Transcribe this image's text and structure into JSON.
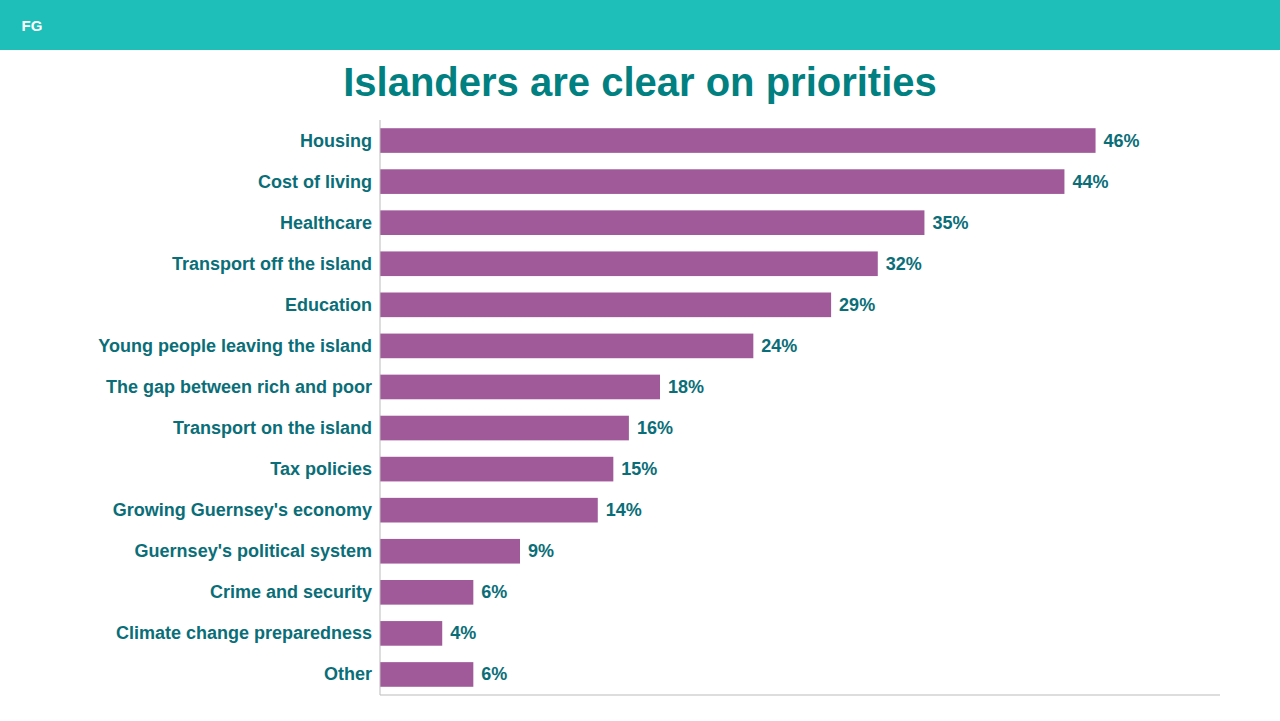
{
  "chart_data": {
    "type": "bar",
    "orientation": "horizontal",
    "title": "Islanders are clear on priorities",
    "annotations": [
      "FG"
    ],
    "categories": [
      "Housing",
      "Cost of living",
      "Healthcare",
      "Transport off the island",
      "Education",
      "Young people leaving the island",
      "The gap between rich and poor",
      "Transport on the island",
      "Tax policies",
      "Growing Guernsey's economy",
      "Guernsey's political system",
      "Crime and security",
      "Climate change preparedness",
      "Other"
    ],
    "values": [
      46,
      44,
      35,
      32,
      29,
      24,
      18,
      16,
      15,
      14,
      9,
      6,
      4,
      6
    ],
    "value_labels": [
      "46%",
      "44%",
      "35%",
      "32%",
      "29%",
      "24%",
      "18%",
      "16%",
      "15%",
      "14%",
      "9%",
      "6%",
      "4%",
      "6%"
    ],
    "color": "#a05a9a",
    "xlim": [
      0,
      54
    ],
    "data_labels": true,
    "tick_labels": "y",
    "grid": false
  }
}
